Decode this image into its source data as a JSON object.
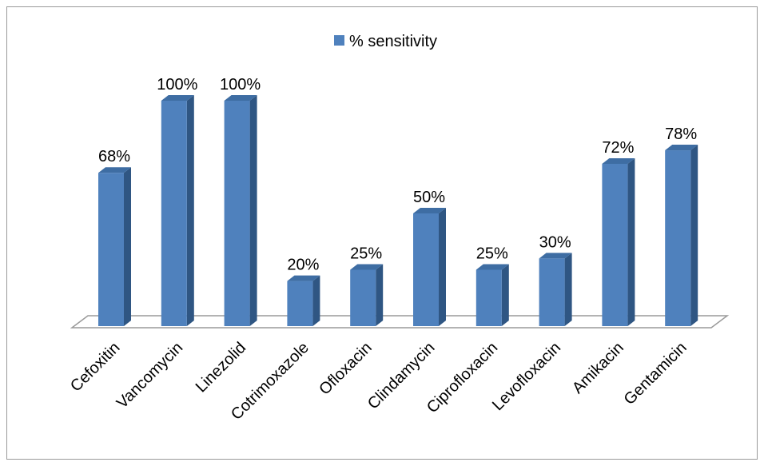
{
  "chart_data": {
    "type": "bar",
    "style": "3d-column",
    "categories": [
      "Cefoxitin",
      "Vancomycin",
      "Linezolid",
      "Cotrimoxazole",
      "Ofloxacin",
      "Clindamycin",
      "Ciprofloxacin",
      "Levofloxacin",
      "Amikacin",
      "Gentamicin"
    ],
    "series": [
      {
        "name": "% sensitivity",
        "values": [
          68,
          100,
          100,
          20,
          25,
          50,
          25,
          30,
          72,
          78
        ],
        "labels": [
          "68%",
          "100%",
          "100%",
          "20%",
          "25%",
          "50%",
          "25%",
          "30%",
          "72%",
          "78%"
        ]
      }
    ],
    "ylim": [
      0,
      100
    ],
    "grid": false,
    "legend": "top-center",
    "colors": {
      "front": "#4f81bd",
      "side": "#2f5683",
      "top": "#3e6da3",
      "floor": "#ffffff",
      "floor_stroke": "#9a9a9a"
    }
  }
}
